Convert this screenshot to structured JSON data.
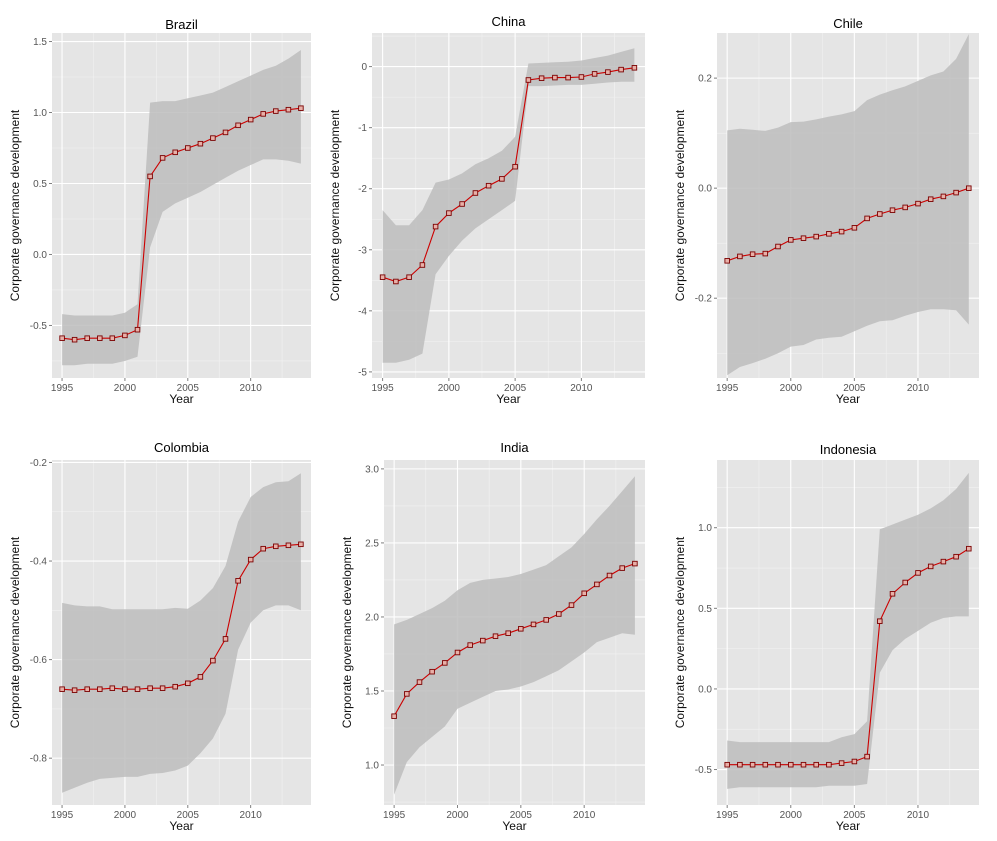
{
  "chart_data": [
    {
      "type": "line",
      "title": "Brazil",
      "xlabel": "Year",
      "ylabel": "Corporate governance development",
      "xlim": [
        1994.2,
        2014.8
      ],
      "ylim": [
        -0.87,
        1.56
      ],
      "xticks": [
        1995,
        2000,
        2005,
        2010
      ],
      "xtick_labels": [
        "1995",
        "2000",
        "2005",
        "2010"
      ],
      "yticks": [
        -0.5,
        0.0,
        0.5,
        1.0,
        1.5
      ],
      "ytick_labels": [
        "-0.5",
        "0.0",
        "0.5",
        "1.0",
        "1.5"
      ],
      "x": [
        1995,
        1996,
        1997,
        1998,
        1999,
        2000,
        2001,
        2002,
        2003,
        2004,
        2005,
        2006,
        2007,
        2008,
        2009,
        2010,
        2011,
        2012,
        2013,
        2014
      ],
      "y": [
        -0.59,
        -0.6,
        -0.59,
        -0.59,
        -0.59,
        -0.57,
        -0.53,
        0.55,
        0.68,
        0.72,
        0.75,
        0.78,
        0.82,
        0.86,
        0.91,
        0.95,
        0.99,
        1.01,
        1.02,
        1.03
      ],
      "band_upper": [
        -0.42,
        -0.43,
        -0.43,
        -0.43,
        -0.43,
        -0.41,
        -0.35,
        1.07,
        1.08,
        1.08,
        1.1,
        1.12,
        1.14,
        1.18,
        1.22,
        1.26,
        1.3,
        1.33,
        1.38,
        1.44
      ],
      "band_lower": [
        -0.78,
        -0.78,
        -0.77,
        -0.77,
        -0.77,
        -0.75,
        -0.72,
        0.05,
        0.3,
        0.36,
        0.4,
        0.44,
        0.49,
        0.54,
        0.59,
        0.63,
        0.67,
        0.67,
        0.66,
        0.64
      ],
      "colors": {
        "line": "#cc0000",
        "band": "#bdbdbd",
        "panel": "#e5e5e5",
        "grid": "#ffffff"
      }
    },
    {
      "type": "line",
      "title": "China",
      "xlabel": "Year",
      "ylabel": "Corporate governance development",
      "xlim": [
        1994.2,
        2014.8
      ],
      "ylim": [
        -5.1,
        0.55
      ],
      "xticks": [
        1995,
        2000,
        2005,
        2010
      ],
      "xtick_labels": [
        "1995",
        "2000",
        "2005",
        "2010"
      ],
      "yticks": [
        -5,
        -4,
        -3,
        -2,
        -1,
        0
      ],
      "ytick_labels": [
        "-5",
        "-4",
        "-3",
        "-2",
        "-1",
        "0"
      ],
      "x": [
        1995,
        1996,
        1997,
        1998,
        1999,
        2000,
        2001,
        2002,
        2003,
        2004,
        2005,
        2006,
        2007,
        2008,
        2009,
        2010,
        2011,
        2012,
        2013,
        2014
      ],
      "y": [
        -3.45,
        -3.52,
        -3.45,
        -3.25,
        -2.62,
        -2.4,
        -2.25,
        -2.07,
        -1.95,
        -1.84,
        -1.64,
        -0.22,
        -0.19,
        -0.18,
        -0.18,
        -0.17,
        -0.12,
        -0.09,
        -0.05,
        -0.02
      ],
      "band_upper": [
        -2.35,
        -2.6,
        -2.6,
        -2.35,
        -1.9,
        -1.85,
        -1.75,
        -1.6,
        -1.5,
        -1.38,
        -1.15,
        0.05,
        0.06,
        0.07,
        0.08,
        0.1,
        0.14,
        0.18,
        0.24,
        0.3
      ],
      "band_lower": [
        -4.85,
        -4.85,
        -4.8,
        -4.7,
        -3.4,
        -3.1,
        -2.85,
        -2.65,
        -2.5,
        -2.35,
        -2.2,
        -0.32,
        -0.32,
        -0.31,
        -0.3,
        -0.3,
        -0.28,
        -0.26,
        -0.25,
        -0.25
      ],
      "colors": {
        "line": "#cc0000",
        "band": "#bdbdbd",
        "panel": "#e5e5e5",
        "grid": "#ffffff"
      }
    },
    {
      "type": "line",
      "title": "Chile",
      "xlabel": "Year",
      "ylabel": "Corporate governance development",
      "xlim": [
        1994.2,
        2014.8
      ],
      "ylim": [
        -0.345,
        0.282
      ],
      "xticks": [
        1995,
        2000,
        2005,
        2010
      ],
      "xtick_labels": [
        "1995",
        "2000",
        "2005",
        "2010"
      ],
      "yticks": [
        -0.2,
        0.0,
        0.2
      ],
      "ytick_labels": [
        "-0.2",
        "0.0",
        "0.2"
      ],
      "x": [
        1995,
        1996,
        1997,
        1998,
        1999,
        2000,
        2001,
        2002,
        2003,
        2004,
        2005,
        2006,
        2007,
        2008,
        2009,
        2010,
        2011,
        2012,
        2013,
        2014
      ],
      "y": [
        -0.132,
        -0.124,
        -0.12,
        -0.119,
        -0.106,
        -0.094,
        -0.091,
        -0.088,
        -0.083,
        -0.079,
        -0.072,
        -0.055,
        -0.047,
        -0.04,
        -0.035,
        -0.028,
        -0.02,
        -0.015,
        -0.008,
        0.0
      ],
      "band_upper": [
        0.105,
        0.108,
        0.106,
        0.104,
        0.11,
        0.12,
        0.121,
        0.125,
        0.13,
        0.134,
        0.14,
        0.16,
        0.17,
        0.178,
        0.185,
        0.195,
        0.205,
        0.212,
        0.235,
        0.28
      ],
      "band_lower": [
        -0.34,
        -0.325,
        -0.318,
        -0.31,
        -0.3,
        -0.288,
        -0.285,
        -0.275,
        -0.272,
        -0.27,
        -0.26,
        -0.25,
        -0.242,
        -0.24,
        -0.232,
        -0.225,
        -0.22,
        -0.22,
        -0.222,
        -0.248
      ],
      "colors": {
        "line": "#cc0000",
        "band": "#bdbdbd",
        "panel": "#e5e5e5",
        "grid": "#ffffff"
      }
    },
    {
      "type": "line",
      "title": "Colombia",
      "xlabel": "Year",
      "ylabel": "Corporate governance development",
      "xlim": [
        1994.2,
        2014.8
      ],
      "ylim": [
        -0.895,
        -0.195
      ],
      "xticks": [
        1995,
        2000,
        2005,
        2010
      ],
      "xtick_labels": [
        "1995",
        "2000",
        "2005",
        "2010"
      ],
      "yticks": [
        -0.8,
        -0.6,
        -0.4,
        -0.2
      ],
      "ytick_labels": [
        "-0.8",
        "-0.6",
        "-0.4",
        "-0.2"
      ],
      "x": [
        1995,
        1996,
        1997,
        1998,
        1999,
        2000,
        2001,
        2002,
        2003,
        2004,
        2005,
        2006,
        2007,
        2008,
        2009,
        2010,
        2011,
        2012,
        2013,
        2014
      ],
      "y": [
        -0.66,
        -0.662,
        -0.66,
        -0.66,
        -0.658,
        -0.66,
        -0.66,
        -0.658,
        -0.658,
        -0.655,
        -0.648,
        -0.635,
        -0.602,
        -0.558,
        -0.44,
        -0.397,
        -0.375,
        -0.37,
        -0.368,
        -0.366
      ],
      "band_upper": [
        -0.485,
        -0.49,
        -0.492,
        -0.492,
        -0.498,
        -0.498,
        -0.498,
        -0.498,
        -0.498,
        -0.495,
        -0.497,
        -0.48,
        -0.455,
        -0.41,
        -0.32,
        -0.27,
        -0.25,
        -0.24,
        -0.238,
        -0.222
      ],
      "band_lower": [
        -0.87,
        -0.86,
        -0.85,
        -0.842,
        -0.84,
        -0.838,
        -0.838,
        -0.832,
        -0.83,
        -0.825,
        -0.815,
        -0.79,
        -0.76,
        -0.71,
        -0.58,
        -0.525,
        -0.5,
        -0.49,
        -0.49,
        -0.5
      ],
      "colors": {
        "line": "#cc0000",
        "band": "#bdbdbd",
        "panel": "#e5e5e5",
        "grid": "#ffffff"
      }
    },
    {
      "type": "line",
      "title": "India",
      "xlabel": "Year",
      "ylabel": "Corporate governance development",
      "xlim": [
        1994.2,
        2014.8
      ],
      "ylim": [
        0.73,
        3.06
      ],
      "xticks": [
        1995,
        2000,
        2005,
        2010
      ],
      "xtick_labels": [
        "1995",
        "2000",
        "2005",
        "2010"
      ],
      "yticks": [
        1.0,
        1.5,
        2.0,
        2.5,
        3.0
      ],
      "ytick_labels": [
        "1.0",
        "1.5",
        "2.0",
        "2.5",
        "3.0"
      ],
      "x": [
        1995,
        1996,
        1997,
        1998,
        1999,
        2000,
        2001,
        2002,
        2003,
        2004,
        2005,
        2006,
        2007,
        2008,
        2009,
        2010,
        2011,
        2012,
        2013,
        2014
      ],
      "y": [
        1.33,
        1.48,
        1.56,
        1.63,
        1.69,
        1.76,
        1.81,
        1.84,
        1.87,
        1.89,
        1.92,
        1.95,
        1.98,
        2.02,
        2.08,
        2.16,
        2.22,
        2.28,
        2.33,
        2.36
      ],
      "band_upper": [
        1.95,
        1.98,
        2.02,
        2.06,
        2.11,
        2.18,
        2.23,
        2.25,
        2.26,
        2.27,
        2.29,
        2.32,
        2.35,
        2.41,
        2.47,
        2.56,
        2.66,
        2.75,
        2.85,
        2.95
      ],
      "band_lower": [
        0.8,
        1.02,
        1.12,
        1.19,
        1.26,
        1.38,
        1.42,
        1.46,
        1.5,
        1.51,
        1.53,
        1.56,
        1.6,
        1.64,
        1.7,
        1.76,
        1.83,
        1.86,
        1.89,
        1.88
      ],
      "colors": {
        "line": "#cc0000",
        "band": "#bdbdbd",
        "panel": "#e5e5e5",
        "grid": "#ffffff"
      }
    },
    {
      "type": "line",
      "title": "Indonesia",
      "xlabel": "Year",
      "ylabel": "Corporate governance development",
      "xlim": [
        1994.2,
        2014.8
      ],
      "ylim": [
        -0.72,
        1.42
      ],
      "xticks": [
        1995,
        2000,
        2005,
        2010
      ],
      "xtick_labels": [
        "1995",
        "2000",
        "2005",
        "2010"
      ],
      "yticks": [
        -0.5,
        0.0,
        0.5,
        1.0
      ],
      "ytick_labels": [
        "-0.5",
        "0.0",
        "0.5",
        "1.0"
      ],
      "x": [
        1995,
        1996,
        1997,
        1998,
        1999,
        2000,
        2001,
        2002,
        2003,
        2004,
        2005,
        2006,
        2007,
        2008,
        2009,
        2010,
        2011,
        2012,
        2013,
        2014
      ],
      "y": [
        -0.47,
        -0.47,
        -0.47,
        -0.47,
        -0.47,
        -0.47,
        -0.47,
        -0.47,
        -0.47,
        -0.46,
        -0.45,
        -0.42,
        0.42,
        0.59,
        0.66,
        0.72,
        0.76,
        0.79,
        0.82,
        0.87
      ],
      "band_upper": [
        -0.32,
        -0.33,
        -0.33,
        -0.33,
        -0.33,
        -0.33,
        -0.33,
        -0.33,
        -0.33,
        -0.3,
        -0.28,
        -0.2,
        0.99,
        1.02,
        1.05,
        1.08,
        1.12,
        1.17,
        1.24,
        1.34
      ],
      "band_lower": [
        -0.62,
        -0.61,
        -0.61,
        -0.61,
        -0.61,
        -0.61,
        -0.61,
        -0.61,
        -0.6,
        -0.6,
        -0.6,
        -0.59,
        0.1,
        0.24,
        0.31,
        0.36,
        0.41,
        0.44,
        0.45,
        0.45
      ],
      "colors": {
        "line": "#cc0000",
        "band": "#bdbdbd",
        "panel": "#e5e5e5",
        "grid": "#ffffff"
      }
    }
  ]
}
